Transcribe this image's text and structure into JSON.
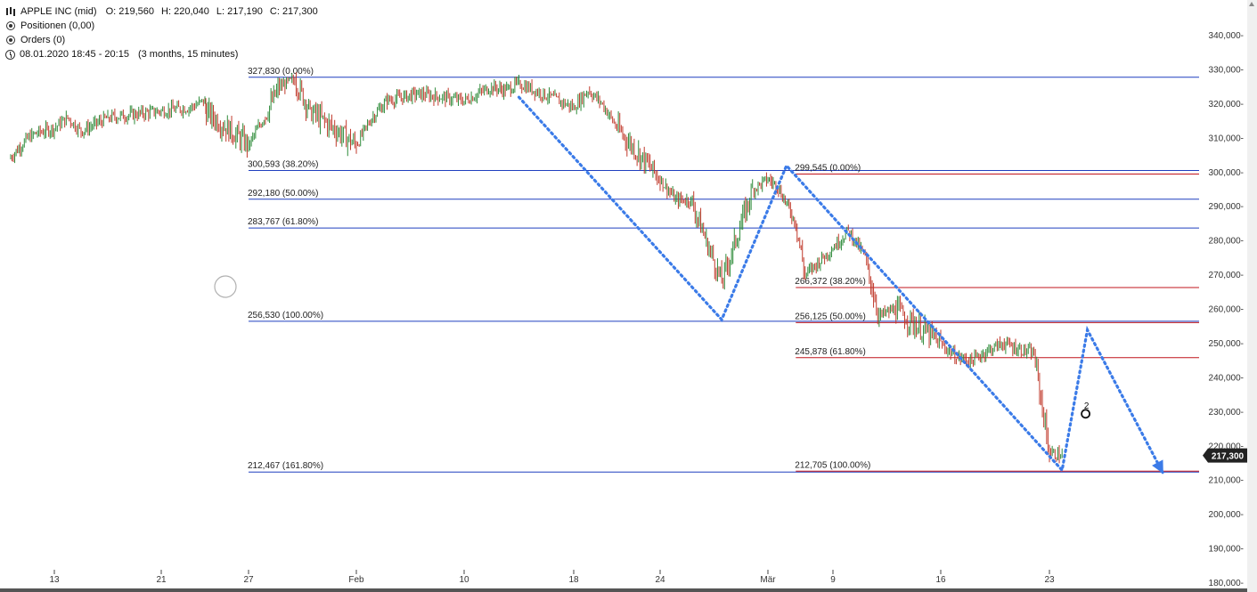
{
  "header": {
    "symbol": "APPLE INC (mid)",
    "open_label": "O:",
    "open": "219,560",
    "high_label": "H:",
    "high": "220,040",
    "low_label": "L:",
    "low": "217,190",
    "close_label": "C:",
    "close": "217,300",
    "positions": "Positionen (0,00)",
    "orders": "Orders (0)",
    "timeframe": "08.01.2020 18:45 - 20:15",
    "period": "(3 months, 15 minutes)"
  },
  "colors": {
    "fib_blue": "#1f3fbf",
    "fib_red": "#c0141c",
    "zigzag": "#3b7be8",
    "candle_up": "#2e8b3a",
    "candle_down": "#c0392b",
    "price_tag": "#222222"
  },
  "chart_data": {
    "type": "candlestick",
    "title": "APPLE INC (mid)",
    "ylim": [
      180,
      345
    ],
    "y_ticks": [
      {
        "value": 340,
        "label": "340,000-"
      },
      {
        "value": 330,
        "label": "330,000-"
      },
      {
        "value": 320,
        "label": "320,000-"
      },
      {
        "value": 310,
        "label": "310,000-"
      },
      {
        "value": 300,
        "label": "300,000-"
      },
      {
        "value": 290,
        "label": "290,000-"
      },
      {
        "value": 280,
        "label": "280,000-"
      },
      {
        "value": 270,
        "label": "270,000-"
      },
      {
        "value": 260,
        "label": "260,000-"
      },
      {
        "value": 250,
        "label": "250,000-"
      },
      {
        "value": 240,
        "label": "240,000-"
      },
      {
        "value": 230,
        "label": "230,000-"
      },
      {
        "value": 220,
        "label": "220,000-"
      },
      {
        "value": 210,
        "label": "210,000-"
      },
      {
        "value": 200,
        "label": "200,000-"
      },
      {
        "value": 190,
        "label": "190,000-"
      },
      {
        "value": 180,
        "label": "180,000-"
      }
    ],
    "x_ticks": [
      {
        "date": "2020-01-13",
        "label": "13"
      },
      {
        "date": "2020-01-21",
        "label": "21"
      },
      {
        "date": "2020-01-27",
        "label": "27"
      },
      {
        "date": "2020-02-03",
        "label": "Feb"
      },
      {
        "date": "2020-02-10",
        "label": "10"
      },
      {
        "date": "2020-02-18",
        "label": "18"
      },
      {
        "date": "2020-02-24",
        "label": "24"
      },
      {
        "date": "2020-03-02",
        "label": "Mär"
      },
      {
        "date": "2020-03-09",
        "label": "9"
      },
      {
        "date": "2020-03-16",
        "label": "16"
      },
      {
        "date": "2020-03-23",
        "label": "23"
      }
    ],
    "last_price": {
      "value": 217.3,
      "label": "217,300"
    },
    "price_path": [
      {
        "date": "2020-01-07",
        "price": 304
      },
      {
        "date": "2020-01-09",
        "price": 309
      },
      {
        "date": "2020-01-10",
        "price": 311
      },
      {
        "date": "2020-01-13",
        "price": 313
      },
      {
        "date": "2020-01-14",
        "price": 316
      },
      {
        "date": "2020-01-15",
        "price": 312
      },
      {
        "date": "2020-01-17",
        "price": 316
      },
      {
        "date": "2020-01-21",
        "price": 318
      },
      {
        "date": "2020-01-23",
        "price": 319
      },
      {
        "date": "2020-01-24",
        "price": 321
      },
      {
        "date": "2020-01-24",
        "price": 318
      },
      {
        "date": "2020-01-27",
        "price": 308
      },
      {
        "date": "2020-01-28",
        "price": 316
      },
      {
        "date": "2020-01-29",
        "price": 325
      },
      {
        "date": "2020-01-30",
        "price": 327
      },
      {
        "date": "2020-01-31",
        "price": 318
      },
      {
        "date": "2020-02-03",
        "price": 308
      },
      {
        "date": "2020-02-04",
        "price": 316
      },
      {
        "date": "2020-02-05",
        "price": 321
      },
      {
        "date": "2020-02-07",
        "price": 323
      },
      {
        "date": "2020-02-10",
        "price": 321
      },
      {
        "date": "2020-02-12",
        "price": 325
      },
      {
        "date": "2020-02-13",
        "price": 324
      },
      {
        "date": "2020-02-14",
        "price": 326
      },
      {
        "date": "2020-02-18",
        "price": 319
      },
      {
        "date": "2020-02-19",
        "price": 324
      },
      {
        "date": "2020-02-20",
        "price": 320
      },
      {
        "date": "2020-02-21",
        "price": 313
      },
      {
        "date": "2020-02-24",
        "price": 298
      },
      {
        "date": "2020-02-25",
        "price": 292
      },
      {
        "date": "2020-02-26",
        "price": 292
      },
      {
        "date": "2020-02-27",
        "price": 280
      },
      {
        "date": "2020-02-28",
        "price": 268
      },
      {
        "date": "2020-03-01",
        "price": 295
      },
      {
        "date": "2020-03-02",
        "price": 298
      },
      {
        "date": "2020-03-03",
        "price": 296
      },
      {
        "date": "2020-03-04",
        "price": 291
      },
      {
        "date": "2020-03-05",
        "price": 285
      },
      {
        "date": "2020-03-06",
        "price": 270
      },
      {
        "date": "2020-03-09",
        "price": 278
      },
      {
        "date": "2020-03-10",
        "price": 283
      },
      {
        "date": "2020-03-11",
        "price": 276
      },
      {
        "date": "2020-03-12",
        "price": 258
      },
      {
        "date": "2020-03-13",
        "price": 260
      },
      {
        "date": "2020-03-16",
        "price": 250
      },
      {
        "date": "2020-03-17",
        "price": 246
      },
      {
        "date": "2020-03-18",
        "price": 245
      },
      {
        "date": "2020-03-19",
        "price": 248
      },
      {
        "date": "2020-03-20",
        "price": 250
      },
      {
        "date": "2020-03-22",
        "price": 247
      },
      {
        "date": "2020-03-23",
        "price": 218
      },
      {
        "date": "2020-03-24",
        "price": 217.3
      }
    ],
    "fib_levels": [
      {
        "value": 327.83,
        "label": "327,830 (0.00%)",
        "color": "blue",
        "start": "2020-01-27"
      },
      {
        "value": 300.593,
        "label": "300,593 (38.20%)",
        "color": "blue",
        "start": "2020-01-27"
      },
      {
        "value": 292.18,
        "label": "292,180 (50.00%)",
        "color": "blue",
        "start": "2020-01-27"
      },
      {
        "value": 283.767,
        "label": "283,767 (61.80%)",
        "color": "blue",
        "start": "2020-01-27"
      },
      {
        "value": 256.53,
        "label": "256,530 (100.00%)",
        "color": "blue",
        "start": "2020-01-27"
      },
      {
        "value": 212.467,
        "label": "212,467 (161.80%)",
        "color": "blue",
        "start": "2020-01-27"
      },
      {
        "value": 299.545,
        "label": "299,545 (0.00%)",
        "color": "red",
        "start": "2020-03-05"
      },
      {
        "value": 266.372,
        "label": "266,372 (38.20%)",
        "color": "red",
        "start": "2020-03-05"
      },
      {
        "value": 256.125,
        "label": "256,125 (50.00%)",
        "color": "red",
        "start": "2020-03-05"
      },
      {
        "value": 245.878,
        "label": "245,878 (61.80%)",
        "color": "red",
        "start": "2020-03-05"
      },
      {
        "value": 212.705,
        "label": "212,705 (100.00%)",
        "color": "red",
        "start": "2020-03-05"
      }
    ],
    "zigzag": [
      {
        "date": "2020-02-14",
        "price": 322
      },
      {
        "date": "2020-02-28",
        "price": 257
      },
      {
        "date": "2020-03-04",
        "price": 302
      },
      {
        "date": "2020-03-24",
        "price": 213
      },
      {
        "date": "2020-03-26",
        "price": 254
      },
      {
        "date": "2020-04-01",
        "price": 212
      }
    ],
    "annotation": {
      "date": "2020-03-26",
      "price": 230,
      "label": "2"
    }
  }
}
